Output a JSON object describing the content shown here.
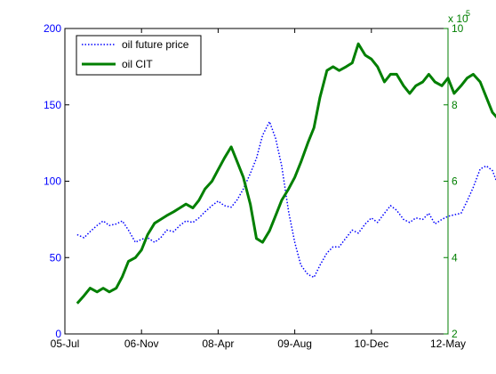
{
  "chart_data": {
    "type": "line",
    "x_ticks": [
      "05-Jul",
      "06-Nov",
      "08-Apr",
      "09-Aug",
      "10-Dec",
      "12-May"
    ],
    "y_left": {
      "ticks": [
        "0",
        "50",
        "100",
        "150",
        "200"
      ],
      "ylim": [
        0,
        200
      ],
      "color": "#0000ff"
    },
    "y_right": {
      "ticks": [
        "2",
        "4",
        "6",
        "8",
        "10"
      ],
      "ylim": [
        2,
        10
      ],
      "exponent_label": "x 10",
      "exponent_power": "5",
      "color": "#007f00"
    },
    "legend": {
      "position": "top-left",
      "entries": [
        "oil future price",
        "oil CIT"
      ]
    },
    "series": [
      {
        "name": "oil future price",
        "axis": "left",
        "color": "#0000ff",
        "style": "dotted",
        "x": [
          0.16,
          0.25,
          0.33,
          0.42,
          0.5,
          0.58,
          0.67,
          0.75,
          0.83,
          0.92,
          1.0,
          1.08,
          1.17,
          1.25,
          1.33,
          1.42,
          1.5,
          1.58,
          1.67,
          1.75,
          1.83,
          1.92,
          2.0,
          2.08,
          2.17,
          2.25,
          2.33,
          2.42,
          2.5,
          2.58,
          2.67,
          2.75,
          2.83,
          2.92,
          3.0,
          3.08,
          3.17,
          3.25,
          3.33,
          3.42,
          3.5,
          3.58,
          3.67,
          3.75,
          3.83,
          3.92,
          4.0,
          4.08,
          4.17,
          4.25,
          4.33,
          4.42,
          4.5,
          4.58,
          4.67,
          4.75,
          4.83,
          4.92,
          5.0,
          5.08,
          5.17,
          5.25,
          5.33,
          5.42,
          5.5,
          5.58,
          5.67,
          5.75,
          5.83
        ],
        "values": [
          65,
          63,
          67,
          71,
          74,
          71,
          72,
          74,
          68,
          60,
          62,
          63,
          60,
          63,
          68,
          67,
          71,
          74,
          73,
          76,
          80,
          84,
          87,
          84,
          83,
          88,
          95,
          105,
          115,
          130,
          139,
          128,
          110,
          80,
          60,
          45,
          39,
          37,
          45,
          53,
          57,
          57,
          63,
          68,
          66,
          72,
          76,
          73,
          79,
          84,
          81,
          75,
          73,
          76,
          75,
          79,
          72,
          75,
          77,
          78,
          79,
          87,
          96,
          108,
          110,
          107,
          95,
          84,
          85
        ]
      },
      {
        "name": "oil CIT",
        "axis": "right",
        "color": "#007f00",
        "style": "solid",
        "x": [
          0.16,
          0.25,
          0.33,
          0.42,
          0.5,
          0.58,
          0.67,
          0.75,
          0.83,
          0.92,
          1.0,
          1.08,
          1.17,
          1.25,
          1.33,
          1.42,
          1.5,
          1.58,
          1.67,
          1.75,
          1.83,
          1.92,
          2.0,
          2.08,
          2.17,
          2.25,
          2.33,
          2.42,
          2.5,
          2.58,
          2.67,
          2.75,
          2.83,
          2.92,
          3.0,
          3.08,
          3.17,
          3.25,
          3.33,
          3.42,
          3.5,
          3.58,
          3.67,
          3.75,
          3.83,
          3.92,
          4.0,
          4.08,
          4.17,
          4.25,
          4.33,
          4.42,
          4.5,
          4.58,
          4.67,
          4.75,
          4.83,
          4.92,
          5.0,
          5.08,
          5.17,
          5.25,
          5.33,
          5.42,
          5.5,
          5.58,
          5.67,
          5.75,
          5.83
        ],
        "values": [
          2.8,
          3.0,
          3.2,
          3.1,
          3.2,
          3.1,
          3.2,
          3.5,
          3.9,
          4.0,
          4.2,
          4.6,
          4.9,
          5.0,
          5.1,
          5.2,
          5.3,
          5.4,
          5.3,
          5.5,
          5.8,
          6.0,
          6.3,
          6.6,
          6.9,
          6.5,
          6.1,
          5.4,
          4.5,
          4.4,
          4.7,
          5.1,
          5.5,
          5.8,
          6.1,
          6.5,
          7.0,
          7.4,
          8.2,
          8.9,
          9.0,
          8.9,
          9.0,
          9.1,
          9.6,
          9.3,
          9.2,
          9.0,
          8.6,
          8.8,
          8.8,
          8.5,
          8.3,
          8.5,
          8.6,
          8.8,
          8.6,
          8.5,
          8.7,
          8.3,
          8.5,
          8.7,
          8.8,
          8.6,
          8.2,
          7.8,
          7.6,
          7.5,
          7.4
        ]
      }
    ]
  }
}
